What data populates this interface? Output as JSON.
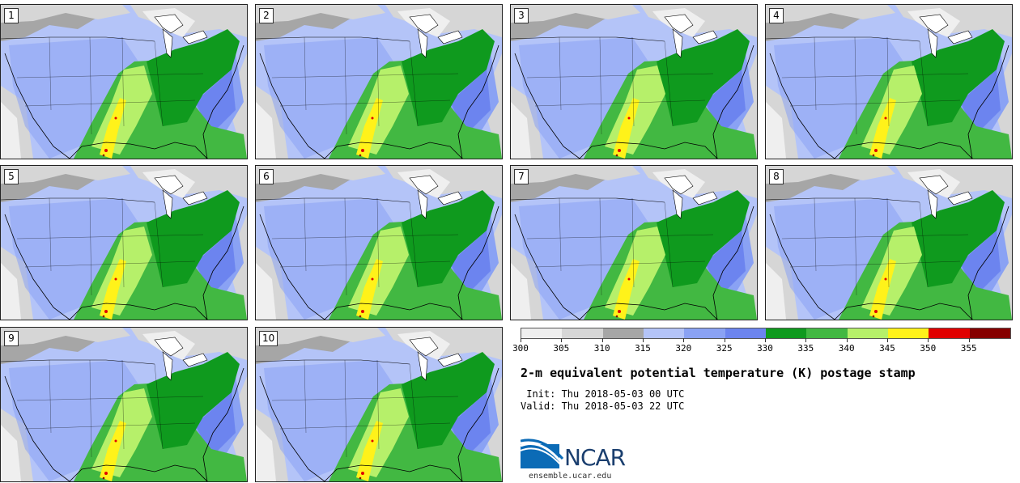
{
  "panels": [
    {
      "label": "1"
    },
    {
      "label": "2"
    },
    {
      "label": "3"
    },
    {
      "label": "4"
    },
    {
      "label": "5"
    },
    {
      "label": "6"
    },
    {
      "label": "7"
    },
    {
      "label": "8"
    },
    {
      "label": "9"
    },
    {
      "label": "10"
    }
  ],
  "colorbar": {
    "colors": [
      "#efefef",
      "#d6d6d6",
      "#a6a6a6",
      "#b4c4f8",
      "#8aa2f4",
      "#6c84ef",
      "#0f9a1e",
      "#42b842",
      "#b6f06a",
      "#fff21a",
      "#e00000",
      "#860000"
    ],
    "tick_labels": [
      "300",
      "305",
      "310",
      "315",
      "320",
      "325",
      "330",
      "335",
      "340",
      "345",
      "350",
      "355"
    ]
  },
  "title": "2-m equivalent potential temperature (K) postage stamp",
  "init": " Init: Thu 2018-05-03 00 UTC",
  "valid": "Valid: Thu 2018-05-03 22 UTC",
  "logo": {
    "text": "NCAR",
    "site": "ensemble.ucar.edu"
  }
}
